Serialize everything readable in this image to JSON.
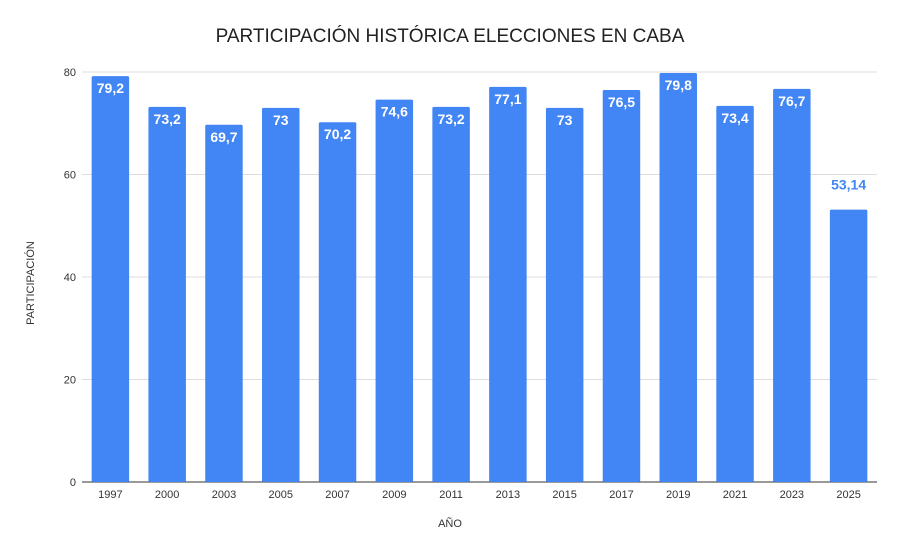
{
  "chart_data": {
    "type": "bar",
    "title": "PARTICIPACIÓN HISTÓRICA ELECCIONES EN CABA",
    "xlabel": "AÑO",
    "ylabel": "PARTICIPACIÓN",
    "ylim": [
      0,
      80
    ],
    "yticks": [
      "0",
      "20",
      "40",
      "60",
      "80"
    ],
    "grid": true,
    "categories": [
      "1997",
      "2000",
      "2003",
      "2005",
      "2007",
      "2009",
      "2011",
      "2013",
      "2015",
      "2017",
      "2019",
      "2021",
      "2023",
      "2025"
    ],
    "values": [
      79.2,
      73.2,
      69.7,
      73,
      70.2,
      74.6,
      73.2,
      77.1,
      73,
      76.5,
      79.8,
      73.4,
      76.7,
      53.14
    ],
    "labels": [
      "79,2",
      "73,2",
      "69,7",
      "73",
      "70,2",
      "74,6",
      "73,2",
      "77,1",
      "73",
      "76,5",
      "79,8",
      "73,4",
      "76,7",
      "53,14"
    ],
    "colors": {
      "bar": "#4285f4",
      "label_inside": "#ffffff",
      "label_outside": "#4285f4"
    }
  }
}
